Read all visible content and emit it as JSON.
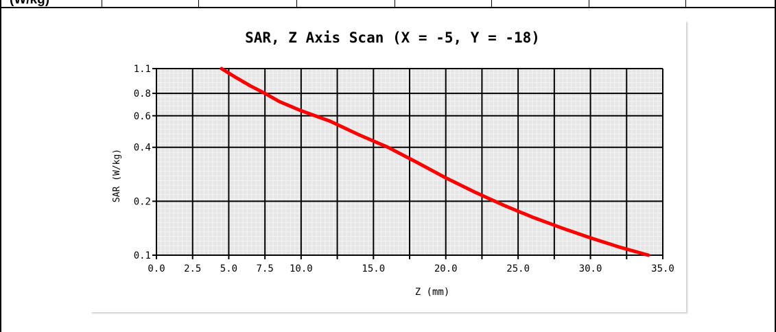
{
  "doc": {
    "header_label": "(W/kg)"
  },
  "chart_data": {
    "type": "line",
    "title": "SAR, Z Axis Scan (X = -5, Y = -18)",
    "xlabel": "Z  (mm)",
    "ylabel": "SAR (W/kg)",
    "xlim": [
      0,
      35
    ],
    "ylim": [
      0.1,
      1.1
    ],
    "yscale": "log",
    "grid": true,
    "x_ticks": [
      0,
      2.5,
      5,
      7.5,
      10,
      15,
      20,
      25,
      30,
      35
    ],
    "x_tick_labels": [
      "0.0",
      "2.5",
      "5.0",
      "7.5",
      "10.0",
      "15.0",
      "20.0",
      "25.0",
      "30.0",
      "35.0"
    ],
    "x_gridlines": [
      0,
      2.5,
      5,
      7.5,
      10,
      12.5,
      15,
      17.5,
      20,
      22.5,
      25,
      27.5,
      30,
      32.5,
      35
    ],
    "y_ticks": [
      1.1,
      0.8,
      0.6,
      0.4,
      0.2,
      0.1
    ],
    "y_tick_labels": [
      "1.1",
      "0.8",
      "0.6",
      "0.4",
      "0.2",
      "0.1"
    ],
    "series": [
      {
        "color": "#ff0000",
        "x": [
          4.5,
          5.5,
          6.5,
          7.5,
          8.5,
          10.0,
          12.0,
          14.0,
          16.0,
          18.0,
          20.0,
          22.0,
          24.0,
          26.0,
          28.0,
          30.0,
          32.0,
          34.0
        ],
        "y": [
          1.1,
          0.98,
          0.88,
          0.8,
          0.72,
          0.64,
          0.56,
          0.47,
          0.4,
          0.33,
          0.27,
          0.225,
          0.19,
          0.163,
          0.142,
          0.125,
          0.111,
          0.1
        ]
      }
    ]
  }
}
